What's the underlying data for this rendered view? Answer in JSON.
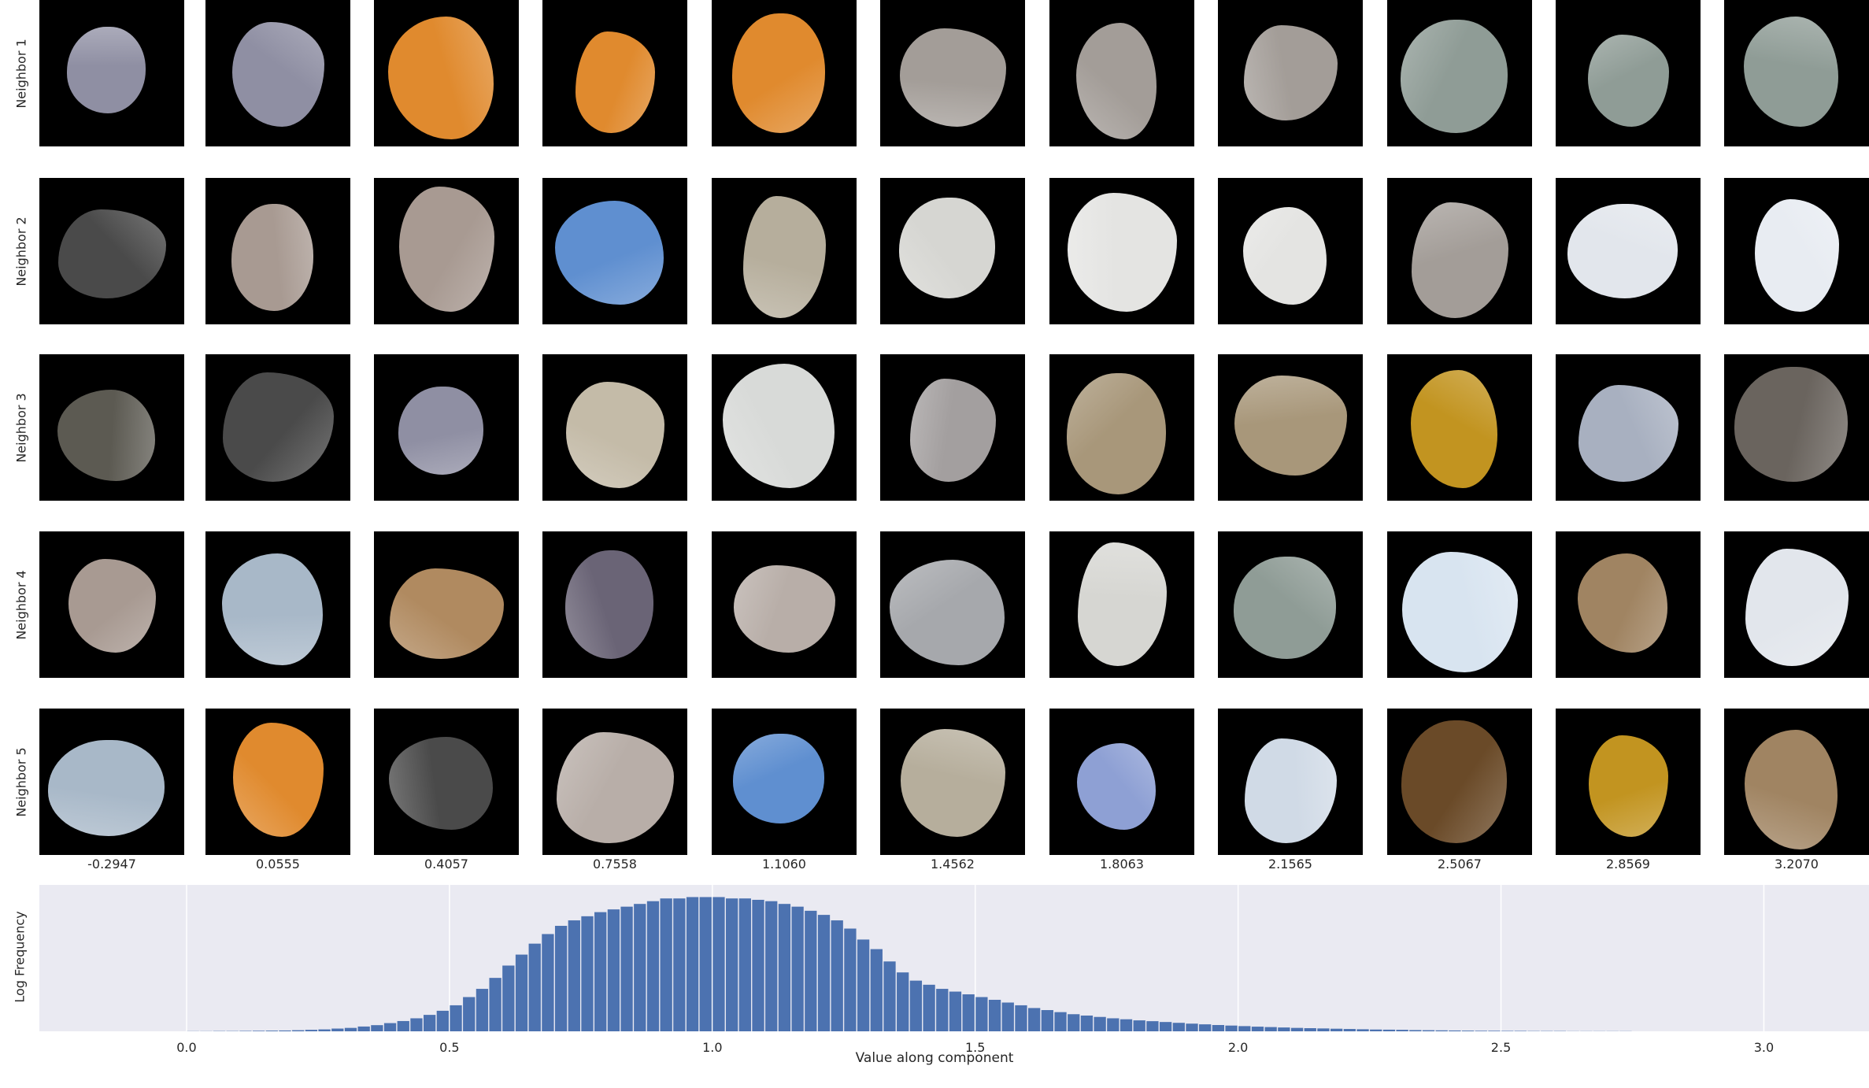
{
  "grid": {
    "row_labels": [
      "Neighbor 1",
      "Neighbor 2",
      "Neighbor 3",
      "Neighbor 4",
      "Neighbor 5"
    ],
    "column_values": [
      "-0.2947",
      "0.0555",
      "0.4057",
      "0.7558",
      "1.1060",
      "1.4562",
      "1.8063",
      "2.1565",
      "2.5067",
      "2.8569",
      "3.2070"
    ],
    "tiles": [
      [
        "#8f8fa3",
        "#8f8fa3",
        "#e08a2e",
        "#e08a2e",
        "#e08a2e",
        "#a39d98",
        "#a39d98",
        "#a39d98",
        "#8f9c96",
        "#8f9c96",
        "#8f9c96"
      ],
      [
        "#4a4a4a",
        "#a89a92",
        "#a89a92",
        "#5f8fd0",
        "#b6ae9c",
        "#d6d6d2",
        "#e4e4e2",
        "#e4e4e2",
        "#a39d98",
        "#e2e6ec",
        "#e8ecf2"
      ],
      [
        "#5c5a52",
        "#4a4a4a",
        "#8f8fa3",
        "#c4bba8",
        "#d8dad8",
        "#a39f9f",
        "#a8977a",
        "#a8977a",
        "#c29420",
        "#a8b0c0",
        "#6a645e"
      ],
      [
        "#a89a92",
        "#a8b8c8",
        "#b08a60",
        "#6a6476",
        "#b8aea8",
        "#a6a8ac",
        "#d6d6d2",
        "#8f9c96",
        "#d8e4f0",
        "#a08462",
        "#e2e6ec"
      ],
      [
        "#a8b8c8",
        "#e08a2e",
        "#4a4a4a",
        "#b8aea8",
        "#5f8fd0",
        "#b6ae9c",
        "#8ea0d4",
        "#d0dae6",
        "#6a4a28",
        "#c29420",
        "#a08462"
      ]
    ]
  },
  "chart_data": {
    "type": "bar",
    "xlabel": "Value along component",
    "ylabel": "Log Frequency",
    "xlim": [
      -0.28,
      3.2
    ],
    "x_ticks": [
      "0.0",
      "0.5",
      "1.0",
      "1.5",
      "2.0",
      "2.5",
      "3.0"
    ],
    "bin_width": 0.025,
    "bins_start": 0.0,
    "values": [
      0.001,
      0.001,
      0.002,
      0.002,
      0.003,
      0.004,
      0.005,
      0.006,
      0.008,
      0.011,
      0.014,
      0.02,
      0.025,
      0.035,
      0.045,
      0.06,
      0.075,
      0.095,
      0.12,
      0.15,
      0.19,
      0.25,
      0.31,
      0.39,
      0.48,
      0.56,
      0.64,
      0.71,
      0.77,
      0.81,
      0.84,
      0.87,
      0.89,
      0.91,
      0.93,
      0.95,
      0.97,
      0.97,
      0.98,
      0.98,
      0.98,
      0.97,
      0.97,
      0.96,
      0.95,
      0.93,
      0.91,
      0.88,
      0.85,
      0.81,
      0.75,
      0.67,
      0.6,
      0.51,
      0.43,
      0.37,
      0.34,
      0.31,
      0.29,
      0.27,
      0.25,
      0.23,
      0.21,
      0.19,
      0.17,
      0.155,
      0.14,
      0.125,
      0.115,
      0.105,
      0.095,
      0.088,
      0.08,
      0.074,
      0.068,
      0.062,
      0.056,
      0.051,
      0.046,
      0.042,
      0.038,
      0.034,
      0.031,
      0.028,
      0.025,
      0.023,
      0.021,
      0.019,
      0.017,
      0.015,
      0.013,
      0.012,
      0.011,
      0.009,
      0.008,
      0.007,
      0.006,
      0.005,
      0.004,
      0.004,
      0.003,
      0.003,
      0.002,
      0.002,
      0.002,
      0.001,
      0.001,
      0.001,
      0.001,
      0.001
    ],
    "grid": true,
    "colors": {
      "bar": "#4c72b0",
      "background": "#eaeaf2",
      "grid": "#ffffff"
    }
  }
}
